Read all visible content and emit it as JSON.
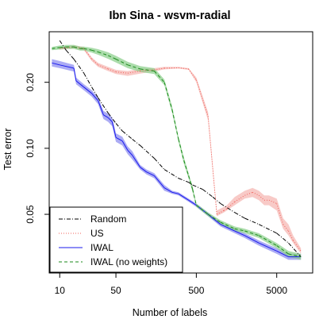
{
  "chart_data": {
    "type": "line",
    "title": "Ibn Sina - wsvm-radial",
    "xlabel": "Number of labels",
    "ylabel": "Test error",
    "x_scale": "log",
    "y_scale": "log",
    "xlim": [
      7.4,
      14000
    ],
    "ylim": [
      0.027,
      0.34
    ],
    "x_ticks": [
      10,
      50,
      500,
      5000
    ],
    "x_tick_labels": [
      "10",
      "50",
      "500",
      "5000"
    ],
    "y_ticks": [
      0.05,
      0.1,
      0.2
    ],
    "y_tick_labels": [
      "0.05",
      "0.10",
      "0.20"
    ],
    "grid": false,
    "legend": {
      "position": "bottom-left",
      "entries": [
        "Random",
        "US",
        "IWAL",
        "IWAL (no weights)"
      ]
    },
    "colors": {
      "Random": "#000000",
      "US": "#f0605a",
      "IWAL": "#1a1aee",
      "IWAL (no weights)": "#1a8a1a",
      "US_band": "#f5b8b4",
      "IWAL_band": "#8f8ff0",
      "IWAL (no weights)_band": "#8fd08f"
    },
    "series": [
      {
        "name": "Random",
        "dash": "dashdot",
        "x": [
          10,
          12,
          15,
          20,
          25,
          30,
          40,
          50,
          60,
          80,
          100,
          150,
          200,
          300,
          400,
          450,
          600,
          800,
          1000,
          1500,
          2000,
          3000,
          5000,
          7000,
          10000
        ],
        "y": [
          0.31,
          0.28,
          0.255,
          0.22,
          0.19,
          0.17,
          0.145,
          0.13,
          0.12,
          0.11,
          0.103,
          0.09,
          0.08,
          0.073,
          0.07,
          0.068,
          0.065,
          0.06,
          0.056,
          0.051,
          0.048,
          0.045,
          0.041,
          0.037,
          0.032
        ]
      },
      {
        "name": "US",
        "dash": "dotted",
        "x": [
          10,
          15,
          20,
          25,
          30,
          40,
          50,
          70,
          100,
          150,
          200,
          300,
          400,
          500,
          700,
          900,
          1100,
          1200,
          1500,
          2000,
          2500,
          3000,
          3500,
          4000,
          5000,
          6000,
          7000,
          8000,
          10000
        ],
        "y": [
          0.285,
          0.29,
          0.285,
          0.255,
          0.24,
          0.23,
          0.223,
          0.22,
          0.225,
          0.228,
          0.232,
          0.233,
          0.23,
          0.205,
          0.14,
          0.05,
          0.052,
          0.053,
          0.057,
          0.061,
          0.063,
          0.061,
          0.058,
          0.058,
          0.056,
          0.045,
          0.042,
          0.038,
          0.034
        ],
        "lower": [
          0.282,
          0.285,
          0.28,
          0.25,
          0.235,
          0.225,
          0.218,
          0.214,
          0.219,
          0.224,
          0.229,
          0.231,
          0.228,
          0.2,
          0.134,
          0.049,
          0.051,
          0.052,
          0.055,
          0.059,
          0.06,
          0.058,
          0.055,
          0.055,
          0.052,
          0.043,
          0.04,
          0.037,
          0.033
        ],
        "upper": [
          0.289,
          0.295,
          0.29,
          0.26,
          0.245,
          0.235,
          0.228,
          0.225,
          0.23,
          0.232,
          0.235,
          0.235,
          0.232,
          0.21,
          0.146,
          0.052,
          0.054,
          0.055,
          0.06,
          0.064,
          0.066,
          0.064,
          0.061,
          0.061,
          0.059,
          0.048,
          0.045,
          0.04,
          0.035
        ]
      },
      {
        "name": "IWAL",
        "dash": "solid",
        "x": [
          8,
          10,
          15,
          16,
          20,
          25,
          30,
          35,
          40,
          45,
          50,
          60,
          70,
          80,
          100,
          120,
          150,
          200,
          250,
          300,
          400,
          500,
          700,
          1000,
          1500,
          2000,
          3000,
          5000,
          7000,
          10000
        ],
        "y": [
          0.245,
          0.24,
          0.232,
          0.203,
          0.19,
          0.178,
          0.165,
          0.142,
          0.138,
          0.132,
          0.112,
          0.108,
          0.098,
          0.093,
          0.082,
          0.078,
          0.075,
          0.066,
          0.063,
          0.062,
          0.058,
          0.055,
          0.05,
          0.045,
          0.042,
          0.04,
          0.037,
          0.034,
          0.032,
          0.032
        ],
        "lower": [
          0.236,
          0.232,
          0.224,
          0.196,
          0.184,
          0.172,
          0.159,
          0.136,
          0.132,
          0.126,
          0.107,
          0.103,
          0.094,
          0.089,
          0.08,
          0.076,
          0.073,
          0.064,
          0.062,
          0.061,
          0.057,
          0.054,
          0.049,
          0.044,
          0.041,
          0.039,
          0.036,
          0.033,
          0.031,
          0.031
        ],
        "upper": [
          0.255,
          0.25,
          0.24,
          0.21,
          0.196,
          0.184,
          0.171,
          0.148,
          0.144,
          0.138,
          0.117,
          0.113,
          0.102,
          0.097,
          0.084,
          0.08,
          0.077,
          0.068,
          0.064,
          0.063,
          0.059,
          0.056,
          0.051,
          0.046,
          0.043,
          0.041,
          0.038,
          0.035,
          0.033,
          0.033
        ]
      },
      {
        "name": "IWAL (no weights)",
        "dash": "dashed",
        "x": [
          8,
          10,
          12,
          15,
          18,
          20,
          25,
          30,
          40,
          50,
          70,
          100,
          150,
          200,
          250,
          300,
          350,
          400,
          450,
          500,
          700,
          1000,
          1500,
          2000,
          3000,
          5000,
          7000,
          10000
        ],
        "y": [
          0.285,
          0.288,
          0.29,
          0.29,
          0.285,
          0.285,
          0.28,
          0.275,
          0.265,
          0.255,
          0.24,
          0.23,
          0.225,
          0.2,
          0.15,
          0.11,
          0.088,
          0.075,
          0.065,
          0.055,
          0.05,
          0.046,
          0.043,
          0.042,
          0.04,
          0.036,
          0.033,
          0.032
        ],
        "lower": [
          0.28,
          0.282,
          0.284,
          0.284,
          0.279,
          0.279,
          0.273,
          0.267,
          0.256,
          0.246,
          0.232,
          0.223,
          0.218,
          0.194,
          0.145,
          0.107,
          0.085,
          0.073,
          0.063,
          0.054,
          0.049,
          0.045,
          0.042,
          0.041,
          0.039,
          0.035,
          0.032,
          0.031
        ],
        "upper": [
          0.29,
          0.294,
          0.296,
          0.296,
          0.291,
          0.291,
          0.287,
          0.283,
          0.274,
          0.264,
          0.248,
          0.237,
          0.232,
          0.206,
          0.155,
          0.113,
          0.091,
          0.077,
          0.067,
          0.056,
          0.051,
          0.047,
          0.044,
          0.043,
          0.041,
          0.037,
          0.034,
          0.033
        ]
      }
    ]
  }
}
